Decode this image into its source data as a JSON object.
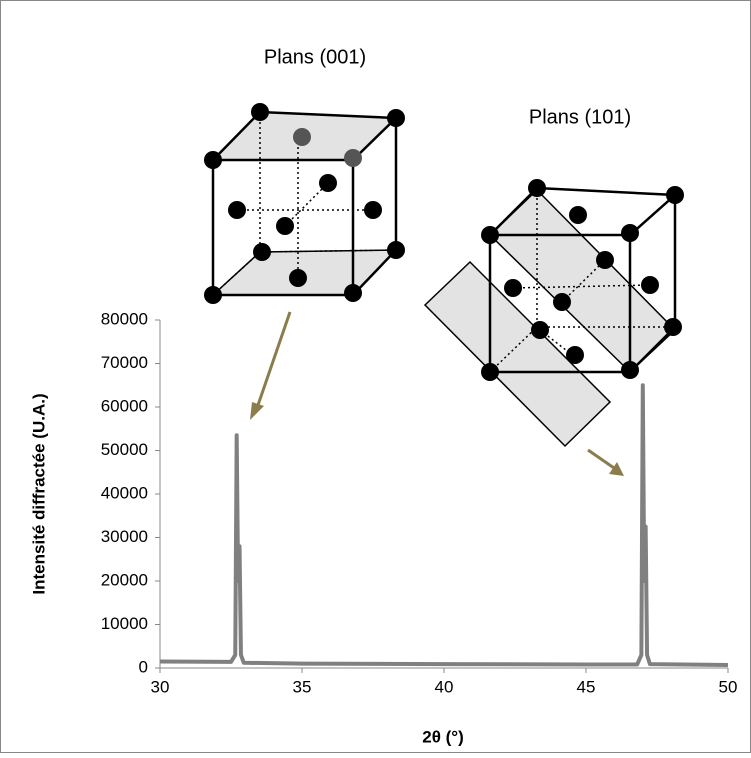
{
  "chart_data": {
    "type": "line",
    "xlabel": "2θ (°)",
    "ylabel": "Intensité diffractée (U.A.)",
    "annotations": [
      "Plans (001)",
      "Plans (101)"
    ],
    "x": [
      30,
      32.5,
      32.65,
      32.7,
      32.75,
      32.8,
      32.85,
      32.95,
      35,
      40,
      45,
      46.8,
      46.95,
      47.0,
      47.05,
      47.1,
      47.15,
      47.25,
      50
    ],
    "series": [
      {
        "color": "#808080",
        "values": [
          1500,
          1400,
          3000,
          53500,
          20000,
          28000,
          3000,
          1200,
          1000,
          900,
          800,
          800,
          3000,
          65000,
          20000,
          32500,
          3000,
          900,
          700
        ]
      }
    ],
    "xlim": [
      30,
      50
    ],
    "xticks": [
      30,
      35,
      40,
      45,
      50
    ],
    "ylim": [
      0,
      80000
    ],
    "yticks": [
      0,
      10000,
      20000,
      30000,
      40000,
      50000,
      60000,
      70000,
      80000
    ],
    "grid": false
  }
}
